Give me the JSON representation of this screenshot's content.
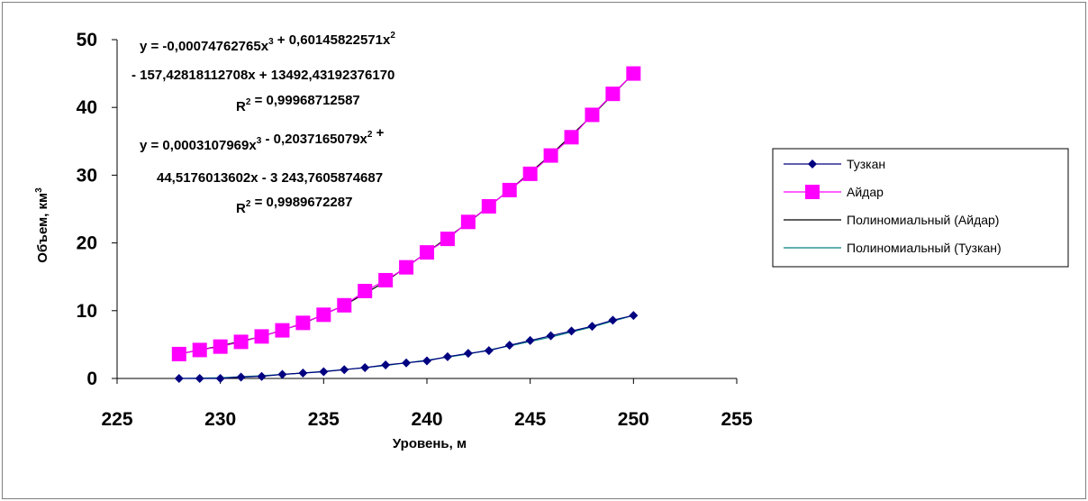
{
  "chart_data": {
    "type": "scatter",
    "xlabel": "Уровень, м",
    "ylabel": "Объем, км3",
    "xlim": [
      225,
      255
    ],
    "ylim": [
      0,
      50
    ],
    "x_ticks": [
      225,
      230,
      235,
      240,
      245,
      250,
      255
    ],
    "y_ticks": [
      0,
      10,
      20,
      30,
      40,
      50
    ],
    "grid": false,
    "legend_position": "right",
    "series": [
      {
        "name": "Тузкан",
        "marker": "diamond",
        "color": "#000080",
        "x": [
          228,
          229,
          230,
          231,
          232,
          233,
          234,
          235,
          236,
          237,
          238,
          239,
          240,
          241,
          242,
          243,
          244,
          245,
          246,
          247,
          248,
          249,
          250
        ],
        "y": [
          0.0,
          0.0,
          0.0,
          0.2,
          0.3,
          0.6,
          0.8,
          1.0,
          1.3,
          1.6,
          2.0,
          2.3,
          2.6,
          3.2,
          3.7,
          4.1,
          4.9,
          5.6,
          6.3,
          7.0,
          7.7,
          8.6,
          9.3
        ]
      },
      {
        "name": "Айдар",
        "marker": "square",
        "color": "#FF00FF",
        "x": [
          228,
          229,
          230,
          231,
          232,
          233,
          234,
          235,
          236,
          237,
          238,
          239,
          240,
          241,
          242,
          243,
          244,
          245,
          246,
          247,
          248,
          249,
          250
        ],
        "y": [
          3.6,
          4.2,
          4.7,
          5.4,
          6.2,
          7.1,
          8.2,
          9.4,
          10.8,
          12.9,
          14.5,
          16.4,
          18.6,
          20.6,
          23.1,
          25.4,
          27.8,
          30.2,
          32.9,
          35.6,
          38.9,
          42.0,
          45.0
        ]
      }
    ],
    "trendlines": [
      {
        "name": "Полиномиальный (Айдар)",
        "type": "polynomial-3",
        "color": "#000000",
        "x": [
          228,
          230,
          232,
          234,
          236,
          238,
          240,
          242,
          244,
          246,
          248,
          250
        ],
        "y": [
          3.6,
          4.8,
          6.2,
          8.1,
          10.8,
          14.3,
          18.6,
          23.0,
          27.8,
          33.0,
          38.8,
          45.0
        ]
      },
      {
        "name": "Полиномиальный (Тузкан)",
        "type": "polynomial-3",
        "color": "#008080",
        "x": [
          228,
          230,
          232,
          234,
          236,
          238,
          240,
          242,
          244,
          246,
          248,
          250
        ],
        "y": [
          0.0,
          0.1,
          0.4,
          0.8,
          1.3,
          1.9,
          2.7,
          3.6,
          4.8,
          6.1,
          7.6,
          9.3
        ]
      }
    ],
    "annotations": [
      {
        "lines": [
          "y = -0,00074762765x3 + 0,60145822571x2",
          "- 157,42818112708x + 13492,43192376170",
          "R2 = 0,99968712587"
        ]
      },
      {
        "lines": [
          "y = 0,0003107969x3 - 0,2037165079x2 +",
          "44,5176013602x - 3 243,7605874687",
          "R2 = 0,9989672287"
        ]
      }
    ]
  }
}
